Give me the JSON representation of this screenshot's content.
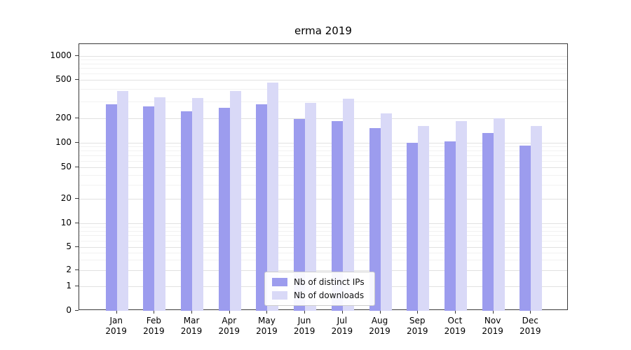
{
  "title": "erma 2019",
  "chart_data": {
    "type": "bar",
    "title": "erma 2019",
    "categories": [
      "Jan",
      "Feb",
      "Mar",
      "Apr",
      "May",
      "Jun",
      "Jul",
      "Aug",
      "Sep",
      "Oct",
      "Nov",
      "Dec"
    ],
    "category_year": "2019",
    "series": [
      {
        "name": "Nb of distinct IPs",
        "color": "#9c9cee",
        "values": [
          280,
          265,
          235,
          255,
          280,
          198,
          185,
          152,
          100,
          105,
          132,
          93
        ]
      },
      {
        "name": "Nb of downloads",
        "color": "#d9d9f7",
        "values": [
          385,
          330,
          325,
          380,
          470,
          290,
          320,
          225,
          160,
          185,
          200,
          162
        ]
      }
    ],
    "yscale": "log above 1, linear 0-1 (symlog)",
    "yticks": [
      0,
      1,
      2,
      5,
      10,
      20,
      50,
      100,
      200,
      500,
      1000
    ],
    "ylim": [
      0,
      1300
    ],
    "grid": "horizontal",
    "legend_position": "lower center"
  }
}
